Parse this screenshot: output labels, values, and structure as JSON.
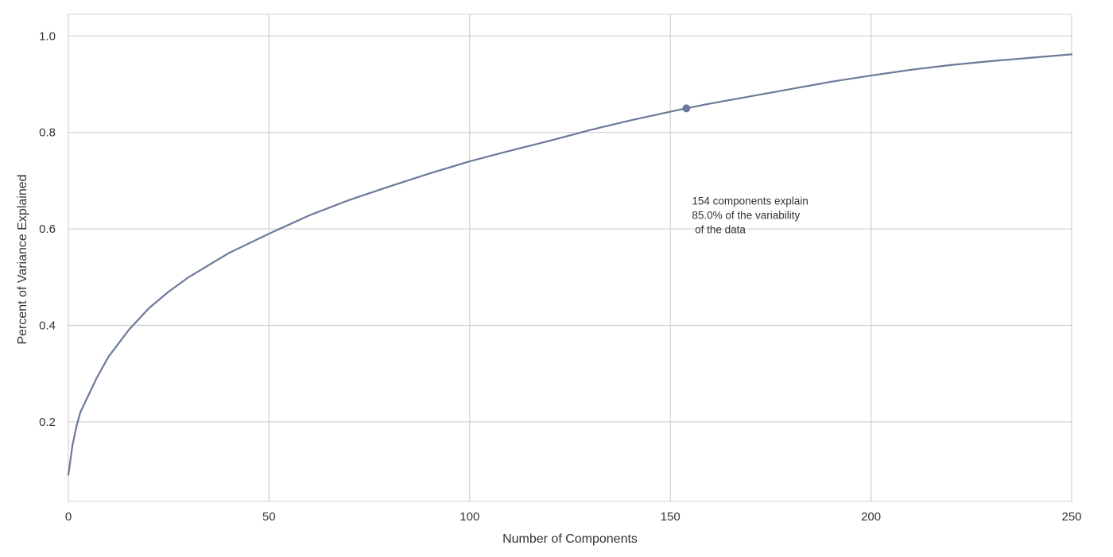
{
  "chart_data": {
    "type": "line",
    "title": "",
    "xlabel": "Number of Components",
    "ylabel": "Percent of Variance Explained",
    "xlim": [
      0,
      250
    ],
    "ylim": [
      0.035,
      1.045
    ],
    "xticks": [
      0,
      50,
      100,
      150,
      200,
      250
    ],
    "xtick_labels": [
      "0",
      "50",
      "100",
      "150",
      "200",
      "250"
    ],
    "yticks": [
      0.2,
      0.4,
      0.6,
      0.8,
      1.0
    ],
    "ytick_labels": [
      "0.2",
      "0.4",
      "0.6",
      "0.8",
      "1.0"
    ],
    "grid": true,
    "colors": {
      "line": "#6b7a99",
      "marker": "#6b7a99",
      "grid": "#d0d0d0",
      "frame": "#d0d0d0",
      "text": "#333333"
    },
    "series": [
      {
        "x": [
          0,
          1,
          2,
          3,
          5,
          7,
          10,
          15,
          20,
          25,
          30,
          40,
          50,
          60,
          70,
          80,
          90,
          100,
          110,
          120,
          130,
          140,
          150,
          154,
          160,
          170,
          180,
          190,
          200,
          210,
          220,
          230,
          240,
          250
        ],
        "y": [
          0.09,
          0.15,
          0.19,
          0.22,
          0.255,
          0.29,
          0.335,
          0.39,
          0.435,
          0.47,
          0.5,
          0.55,
          0.59,
          0.628,
          0.66,
          0.688,
          0.715,
          0.74,
          0.762,
          0.783,
          0.805,
          0.825,
          0.843,
          0.85,
          0.86,
          0.875,
          0.89,
          0.905,
          0.918,
          0.93,
          0.94,
          0.948,
          0.955,
          0.962
        ]
      }
    ],
    "highlight_point": {
      "x": 154,
      "y": 0.85
    },
    "annotation": {
      "lines": [
        "154 components explain",
        "85.0% of the variability",
        " of the data"
      ],
      "x": 154,
      "y": 0.65
    }
  }
}
